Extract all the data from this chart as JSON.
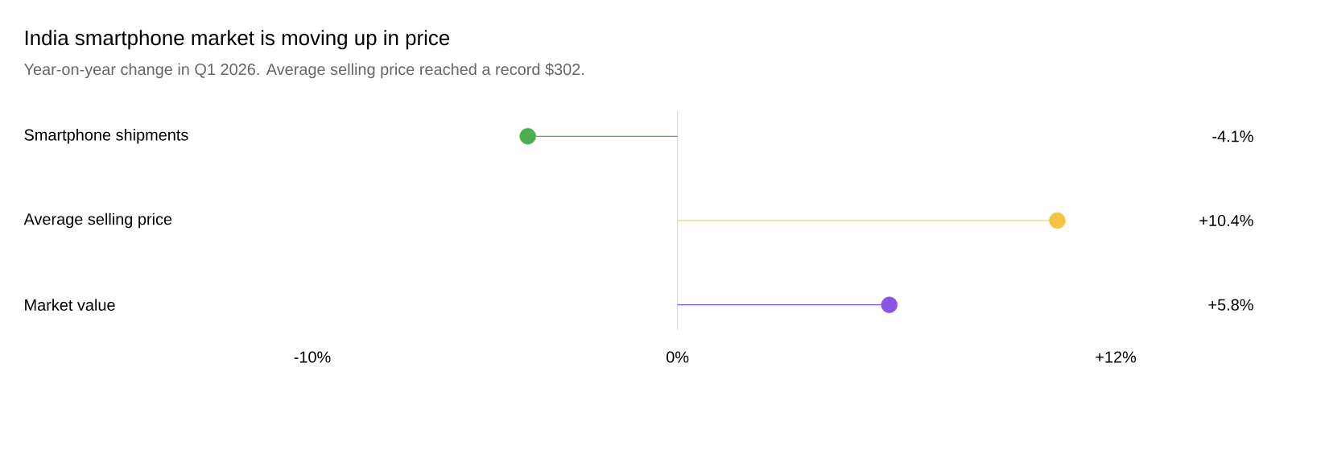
{
  "chart_data": {
    "type": "lollipop",
    "orientation": "horizontal",
    "title": "India smartphone market is moving up in price",
    "subtitle": "Year-on-year change in Q1 2026. Average selling price reached a record $302.",
    "categories": [
      "Smartphone shipments",
      "Average selling price",
      "Market value"
    ],
    "values": [
      -4.1,
      10.4,
      5.8
    ],
    "colors": [
      "#4caf50",
      "#f5c242",
      "#8b55e8"
    ],
    "value_labels": [
      "-4.1%",
      "+10.4%",
      "+5.8%"
    ],
    "xlim": [
      -10,
      12
    ],
    "xticks": [
      {
        "value": -10,
        "label": "-10%"
      },
      {
        "value": 0,
        "label": "0%"
      },
      {
        "value": 12,
        "label": "+12%"
      }
    ],
    "ref_lines": [
      {
        "axis": "x",
        "value": 0,
        "color": "#d4d4d4"
      }
    ],
    "marker": "circle",
    "grid": false
  }
}
